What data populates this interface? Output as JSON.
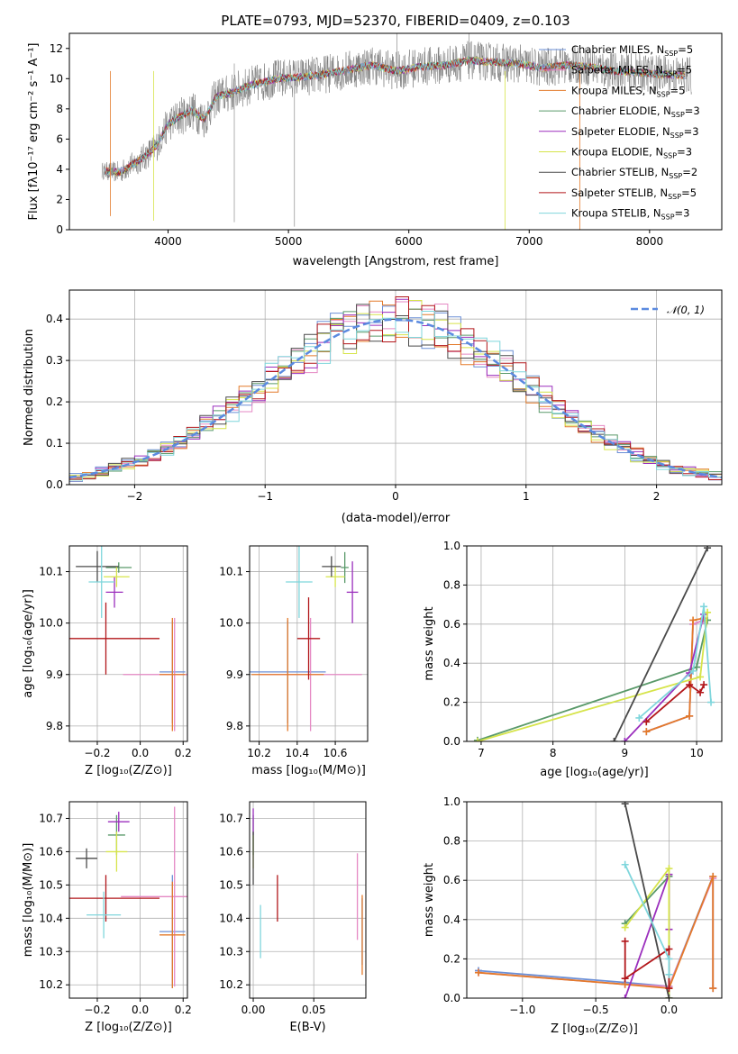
{
  "colors": {
    "chabrier_miles": "#6b8fd6",
    "salpeter_miles": "#e589c4",
    "kroupa_miles": "#e37a2a",
    "chabrier_elodie": "#5a9a6a",
    "salpeter_elodie": "#9b2fbd",
    "kroupa_elodie": "#d6e44a",
    "chabrier_stelib": "#4a4a4a",
    "salpeter_stelib": "#b2161a",
    "kroupa_stelib": "#7fd6dc",
    "normal": "#5b8ae0"
  },
  "chart_data": [
    {
      "id": "spectrum",
      "type": "line",
      "title": "PLATE=0793, MJD=52370, FIBERID=0409, z=0.103",
      "xlabel": "wavelength [Angstrom, rest frame]",
      "ylabel": "Flux [fλ10⁻¹⁷ erg cm⁻² s⁻¹ A⁻¹]",
      "xlim": [
        3180,
        8600
      ],
      "ylim": [
        0,
        13
      ],
      "xticks": [
        "4000",
        "5000",
        "6000",
        "7000",
        "8000"
      ],
      "yticks": [
        "0",
        "2",
        "4",
        "6",
        "8",
        "10",
        "12"
      ],
      "grid": false,
      "legend": "top-right",
      "continuum_wavelength": [
        3450,
        3600,
        3700,
        3800,
        3900,
        4000,
        4100,
        4200,
        4300,
        4400,
        4500,
        4700,
        4900,
        5100,
        5300,
        5500,
        5700,
        5900,
        6100,
        6300,
        6500,
        6700,
        6900,
        7100,
        7300,
        7500,
        7700,
        7900,
        8100,
        8350
      ],
      "continuum_flux": [
        3.9,
        3.8,
        4.3,
        4.8,
        5.5,
        7.0,
        7.5,
        7.9,
        7.3,
        8.8,
        9.0,
        9.6,
        10.0,
        10.1,
        10.3,
        10.6,
        10.9,
        10.5,
        10.8,
        10.9,
        11.2,
        11.1,
        11.0,
        10.7,
        10.9,
        10.8,
        10.5,
        10.4,
        10.3,
        10.2
      ],
      "series": [
        {
          "name": "Chabrier MILES, N_SSP=5",
          "label_main": "Chabrier MILES, N",
          "label_sub": "SSP",
          "label_tail": "=5",
          "color_key": "chabrier_miles"
        },
        {
          "name": "Salpeter MILES, N_SSP=5",
          "label_main": "Salpeter MILES, N",
          "label_sub": "SSP",
          "label_tail": "=5",
          "color_key": "salpeter_miles"
        },
        {
          "name": "Kroupa MILES, N_SSP=5",
          "label_main": "Kroupa MILES, N",
          "label_sub": "SSP",
          "label_tail": "=5",
          "color_key": "kroupa_miles"
        },
        {
          "name": "Chabrier ELODIE, N_SSP=3",
          "label_main": "Chabrier ELODIE, N",
          "label_sub": "SSP",
          "label_tail": "=3",
          "color_key": "chabrier_elodie"
        },
        {
          "name": "Salpeter ELODIE, N_SSP=3",
          "label_main": "Salpeter ELODIE, N",
          "label_sub": "SSP",
          "label_tail": "=3",
          "color_key": "salpeter_elodie"
        },
        {
          "name": "Kroupa ELODIE, N_SSP=3",
          "label_main": "Kroupa ELODIE, N",
          "label_sub": "SSP",
          "label_tail": "=3",
          "color_key": "kroupa_elodie"
        },
        {
          "name": "Chabrier STELIB, N_SSP=2",
          "label_main": "Chabrier STELIB, N",
          "label_sub": "SSP",
          "label_tail": "=2",
          "color_key": "chabrier_stelib"
        },
        {
          "name": "Salpeter STELIB, N_SSP=5",
          "label_main": "Salpeter STELIB, N",
          "label_sub": "SSP",
          "label_tail": "=5",
          "color_key": "salpeter_stelib"
        },
        {
          "name": "Kroupa STELIB, N_SSP=3",
          "label_main": "Kroupa STELIB, N",
          "label_sub": "SSP",
          "label_tail": "=3",
          "color_key": "kroupa_stelib"
        }
      ]
    },
    {
      "id": "residuals",
      "type": "histogram",
      "xlabel": "(data-model)/error",
      "ylabel": "Normed distribution",
      "xlim": [
        -2.5,
        2.5
      ],
      "ylim": [
        0,
        0.47
      ],
      "xticks": [
        "−2",
        "−1",
        "0",
        "1",
        "2"
      ],
      "yticks": [
        "0.0",
        "0.1",
        "0.2",
        "0.3",
        "0.4"
      ],
      "grid": true,
      "legend": "top-right",
      "legend_label": "𝒩(0, 1)",
      "normal_curve": {
        "mean": 0,
        "std": 1
      }
    },
    {
      "id": "age-vs-Z",
      "type": "scatter",
      "xlabel": "Z [log₁₀(Z/Z⊙)]",
      "ylabel": "age  [log₁₀(age/yr)]",
      "xlim": [
        -0.33,
        0.22
      ],
      "ylim": [
        9.77,
        10.15
      ],
      "xticks": [
        "−0.2",
        "0.0",
        "0.2"
      ],
      "yticks": [
        "9.8",
        "9.9",
        "10.0",
        "10.1"
      ],
      "grid": true,
      "points": [
        {
          "c": "chabrier_miles",
          "x": 0.15,
          "y": 9.905,
          "xerr": 0.06,
          "yerr": 0.1
        },
        {
          "c": "salpeter_miles",
          "x": 0.16,
          "y": 9.9,
          "xerr": 0.24,
          "yerr": 0.11
        },
        {
          "c": "kroupa_miles",
          "x": 0.15,
          "y": 9.9,
          "xerr": 0.06,
          "yerr": 0.11
        },
        {
          "c": "chabrier_elodie",
          "x": -0.1,
          "y": 10.108,
          "xerr": 0.06,
          "yerr": 0.01
        },
        {
          "c": "salpeter_elodie",
          "x": -0.12,
          "y": 10.06,
          "xerr": 0.04,
          "yerr": 0.03
        },
        {
          "c": "kroupa_elodie",
          "x": -0.11,
          "y": 10.09,
          "xerr": 0.06,
          "yerr": 0.02
        },
        {
          "c": "chabrier_stelib",
          "x": -0.2,
          "y": 10.11,
          "xerr": 0.1,
          "yerr": 0.03
        },
        {
          "c": "salpeter_stelib",
          "x": -0.16,
          "y": 9.97,
          "xerr": 0.25,
          "yerr": 0.07
        },
        {
          "c": "kroupa_stelib",
          "x": -0.18,
          "y": 10.08,
          "xerr": 0.06,
          "yerr": 0.07
        }
      ]
    },
    {
      "id": "age-vs-mass",
      "type": "scatter",
      "xlabel": "mass [log₁₀(M/M⊙)]",
      "ylabel": "",
      "xlim": [
        10.15,
        10.77
      ],
      "ylim": [
        9.77,
        10.15
      ],
      "xticks": [
        "10.2",
        "10.4",
        "10.6"
      ],
      "yticks": [
        "9.8",
        "9.9",
        "10.0",
        "10.1"
      ],
      "grid": true,
      "points": [
        {
          "c": "chabrier_miles",
          "x": 10.35,
          "y": 9.905,
          "xerr": 0.2,
          "yerr": 0.1
        },
        {
          "c": "salpeter_miles",
          "x": 10.47,
          "y": 9.9,
          "xerr": 0.27,
          "yerr": 0.11
        },
        {
          "c": "kroupa_miles",
          "x": 10.35,
          "y": 9.9,
          "xerr": 0.19,
          "yerr": 0.11
        },
        {
          "c": "chabrier_elodie",
          "x": 10.65,
          "y": 10.108,
          "xerr": 0.02,
          "yerr": 0.03
        },
        {
          "c": "salpeter_elodie",
          "x": 10.69,
          "y": 10.06,
          "xerr": 0.03,
          "yerr": 0.06
        },
        {
          "c": "kroupa_elodie",
          "x": 10.6,
          "y": 10.09,
          "xerr": 0.05,
          "yerr": 0.02
        },
        {
          "c": "chabrier_stelib",
          "x": 10.58,
          "y": 10.11,
          "xerr": 0.05,
          "yerr": 0.02
        },
        {
          "c": "salpeter_stelib",
          "x": 10.46,
          "y": 9.97,
          "xerr": 0.06,
          "yerr": 0.08
        },
        {
          "c": "kroupa_stelib",
          "x": 10.41,
          "y": 10.08,
          "xerr": 0.07,
          "yerr": 0.07
        }
      ]
    },
    {
      "id": "weight-vs-age",
      "type": "line",
      "xlabel": "age  [log₁₀(age/yr)]",
      "ylabel": "mass weight",
      "xlim": [
        6.8,
        10.35
      ],
      "ylim": [
        0,
        1
      ],
      "xticks": [
        "7",
        "8",
        "9",
        "10"
      ],
      "yticks": [
        "0.0",
        "0.2",
        "0.4",
        "0.6",
        "0.8",
        "1.0"
      ],
      "grid": true,
      "series": [
        {
          "c": "chabrier_miles",
          "x": [
            9.3,
            9.9,
            9.95,
            10.1
          ],
          "y": [
            0.05,
            0.13,
            0.6,
            0.62
          ]
        },
        {
          "c": "salpeter_miles",
          "x": [
            9.3,
            9.9,
            9.95,
            10.1
          ],
          "y": [
            0.05,
            0.13,
            0.6,
            0.62
          ]
        },
        {
          "c": "kroupa_miles",
          "x": [
            9.3,
            9.9,
            9.95,
            10.1
          ],
          "y": [
            0.05,
            0.13,
            0.62,
            0.63
          ]
        },
        {
          "c": "chabrier_elodie",
          "x": [
            6.95,
            10.0,
            10.15
          ],
          "y": [
            0.005,
            0.38,
            0.62
          ]
        },
        {
          "c": "salpeter_elodie",
          "x": [
            9.0,
            9.9,
            10.1
          ],
          "y": [
            0.0,
            0.35,
            0.65
          ]
        },
        {
          "c": "kroupa_elodie",
          "x": [
            6.95,
            10.05,
            10.15
          ],
          "y": [
            0.0,
            0.33,
            0.66
          ]
        },
        {
          "c": "chabrier_stelib",
          "x": [
            8.85,
            10.15
          ],
          "y": [
            0.0,
            0.99
          ]
        },
        {
          "c": "salpeter_stelib",
          "x": [
            9.3,
            9.9,
            10.05,
            10.1
          ],
          "y": [
            0.1,
            0.29,
            0.25,
            0.29
          ]
        },
        {
          "c": "kroupa_stelib",
          "x": [
            9.2,
            9.95,
            10.1,
            10.2
          ],
          "y": [
            0.12,
            0.36,
            0.69,
            0.2
          ]
        }
      ]
    },
    {
      "id": "mass-vs-Z",
      "type": "scatter",
      "xlabel": "Z [log₁₀(Z/Z⊙)]",
      "ylabel": "mass [log₁₀(M/M⊙)]",
      "xlim": [
        -0.33,
        0.22
      ],
      "ylim": [
        10.16,
        10.75
      ],
      "xticks": [
        "−0.2",
        "0.0",
        "0.2"
      ],
      "yticks": [
        "10.2",
        "10.3",
        "10.4",
        "10.5",
        "10.6",
        "10.7"
      ],
      "grid": true,
      "points": [
        {
          "c": "chabrier_miles",
          "x": 0.15,
          "y": 10.36,
          "xerr": 0.06,
          "yerr": 0.17
        },
        {
          "c": "salpeter_miles",
          "x": 0.16,
          "y": 10.465,
          "xerr": 0.25,
          "yerr": 0.27
        },
        {
          "c": "kroupa_miles",
          "x": 0.15,
          "y": 10.35,
          "xerr": 0.06,
          "yerr": 0.16
        },
        {
          "c": "chabrier_elodie",
          "x": -0.11,
          "y": 10.65,
          "xerr": 0.04,
          "yerr": 0.06
        },
        {
          "c": "salpeter_elodie",
          "x": -0.1,
          "y": 10.69,
          "xerr": 0.05,
          "yerr": 0.03
        },
        {
          "c": "kroupa_elodie",
          "x": -0.11,
          "y": 10.6,
          "xerr": 0.05,
          "yerr": 0.06
        },
        {
          "c": "chabrier_stelib",
          "x": -0.25,
          "y": 10.58,
          "xerr": 0.05,
          "yerr": 0.03
        },
        {
          "c": "salpeter_stelib",
          "x": -0.16,
          "y": 10.46,
          "xerr": 0.25,
          "yerr": 0.07
        },
        {
          "c": "kroupa_stelib",
          "x": -0.17,
          "y": 10.41,
          "xerr": 0.08,
          "yerr": 0.07
        }
      ]
    },
    {
      "id": "mass-vs-EBV",
      "type": "scatter",
      "xlabel": "E(B-V)",
      "ylabel": "",
      "xlim": [
        -0.003,
        0.093
      ],
      "ylim": [
        10.16,
        10.75
      ],
      "xticks": [
        "0.00",
        "0.05"
      ],
      "yticks": [
        "10.2",
        "10.3",
        "10.4",
        "10.5",
        "10.6",
        "10.7"
      ],
      "grid": true,
      "points": [
        {
          "c": "chabrier_miles",
          "x": 0.09,
          "y": 10.36,
          "xerr": 0,
          "yerr": 0.1
        },
        {
          "c": "salpeter_miles",
          "x": 0.086,
          "y": 10.465,
          "xerr": 0,
          "yerr": 0.13
        },
        {
          "c": "kroupa_miles",
          "x": 0.09,
          "y": 10.35,
          "xerr": 0,
          "yerr": 0.12
        },
        {
          "c": "chabrier_elodie",
          "x": 0.0,
          "y": 10.65,
          "xerr": 0,
          "yerr": 0.06
        },
        {
          "c": "salpeter_elodie",
          "x": 0.0,
          "y": 10.69,
          "xerr": 0,
          "yerr": 0.04
        },
        {
          "c": "kroupa_elodie",
          "x": 0.0,
          "y": 10.6,
          "xerr": 0,
          "yerr": 0.05
        },
        {
          "c": "chabrier_stelib",
          "x": 0.0,
          "y": 10.58,
          "xerr": 0,
          "yerr": 0.08
        },
        {
          "c": "salpeter_stelib",
          "x": 0.02,
          "y": 10.46,
          "xerr": 0,
          "yerr": 0.07
        },
        {
          "c": "kroupa_stelib",
          "x": 0.006,
          "y": 10.36,
          "xerr": 0,
          "yerr": 0.08
        }
      ]
    },
    {
      "id": "weight-vs-Z",
      "type": "line",
      "xlabel": "Z [log₁₀(Z/Z⊙)]",
      "ylabel": "mass weight",
      "xlim": [
        -1.38,
        0.36
      ],
      "ylim": [
        0,
        1
      ],
      "xticks": [
        "−1.0",
        "−0.5",
        "0.0"
      ],
      "yticks": [
        "0.0",
        "0.2",
        "0.4",
        "0.6",
        "0.8",
        "1.0"
      ],
      "grid": true,
      "series": [
        {
          "c": "chabrier_miles",
          "x": [
            -1.3,
            -0.3,
            0.0,
            0.3,
            0.3
          ],
          "y": [
            0.14,
            0.08,
            0.06,
            0.62,
            0.05
          ]
        },
        {
          "c": "salpeter_miles",
          "x": [
            -1.3,
            -0.3,
            0.0,
            0.3,
            0.3
          ],
          "y": [
            0.13,
            0.07,
            0.06,
            0.61,
            0.05
          ]
        },
        {
          "c": "kroupa_miles",
          "x": [
            -1.3,
            -0.3,
            0.0,
            0.3,
            0.3
          ],
          "y": [
            0.13,
            0.07,
            0.05,
            0.62,
            0.05
          ]
        },
        {
          "c": "chabrier_elodie",
          "x": [
            -0.3,
            0.0,
            0.0
          ],
          "y": [
            0.38,
            0.62,
            0.0
          ]
        },
        {
          "c": "salpeter_elodie",
          "x": [
            -0.3,
            0.0,
            0.0
          ],
          "y": [
            0.0,
            0.63,
            0.35
          ]
        },
        {
          "c": "kroupa_elodie",
          "x": [
            -0.3,
            0.0,
            0.0
          ],
          "y": [
            0.36,
            0.66,
            0.0
          ]
        },
        {
          "c": "chabrier_stelib",
          "x": [
            -0.3,
            0.0
          ],
          "y": [
            0.99,
            0.0
          ]
        },
        {
          "c": "salpeter_stelib",
          "x": [
            -0.3,
            -0.3,
            0.0,
            0.0
          ],
          "y": [
            0.29,
            0.1,
            0.25,
            0.05
          ]
        },
        {
          "c": "kroupa_stelib",
          "x": [
            -0.3,
            0.0,
            0.0
          ],
          "y": [
            0.68,
            0.2,
            0.12
          ]
        }
      ]
    }
  ]
}
